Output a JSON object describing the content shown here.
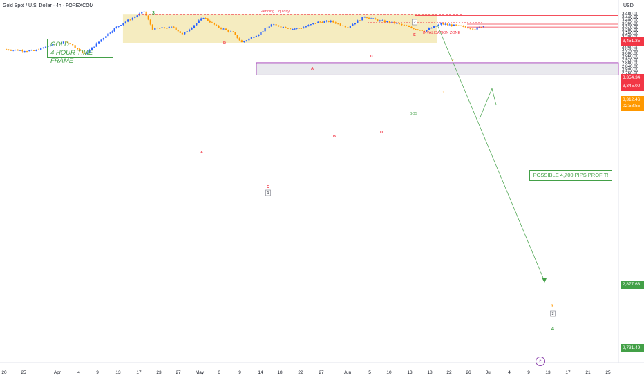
{
  "header": {
    "title": "Gold Spot / U.S. Dollar · 4h · FOREXCOM",
    "currency": "USD"
  },
  "annotations": {
    "gold_line1": "GOLD",
    "gold_line2": "4 HOUR TIME FRAME",
    "pending_liquidity": "Pending Liquidity",
    "invalidation_zone": "INVALIDATION ZONE",
    "bos": "BOS",
    "profit": "POSSIBLE 4,700 PIPS PROFIT!",
    "wave_labels": [
      "3",
      "A",
      "B",
      "C",
      "A",
      "B",
      "C",
      "D",
      "E",
      "1",
      "2",
      "3",
      "4"
    ],
    "boxed_labels": [
      "1",
      "2",
      "3"
    ]
  },
  "price_tags": {
    "t1": "3,451.35",
    "t2": "3,354.34",
    "t3": "3,345.00",
    "t4": "3,312.46",
    "t5": "02:58:55",
    "t6": "2,877.63",
    "t7": "2,731.49"
  },
  "colors": {
    "up": "#2962ff",
    "down": "#ff9800",
    "green": "#43a047",
    "red": "#f23645",
    "zone": "#f3e9b5"
  },
  "chart_data": {
    "type": "candlestick",
    "title": "Gold Spot / U.S. Dollar",
    "timeframe": "4h",
    "y_ticks": [
      2720,
      2760,
      2800,
      2840,
      2880,
      2920,
      2960,
      3000,
      3040,
      3080,
      3120,
      3160,
      3200,
      3240,
      3280,
      3320,
      3360,
      3400,
      3440,
      3480
    ],
    "x_ticks": [
      "20",
      "25",
      "Apr",
      "4",
      "9",
      "13",
      "17",
      "23",
      "27",
      "May",
      "6",
      "9",
      "14",
      "18",
      "22",
      "27",
      "Jun",
      "5",
      "10",
      "13",
      "18",
      "22",
      "26",
      "Jul",
      "4",
      "9",
      "13",
      "17",
      "21",
      "25"
    ],
    "close_path": [
      {
        "d": "2025-03-20",
        "p": 3040
      },
      {
        "d": "2025-03-27",
        "p": 3020
      },
      {
        "d": "2025-04-01",
        "p": 3110
      },
      {
        "d": "2025-04-04",
        "p": 3130
      },
      {
        "d": "2025-04-08",
        "p": 2980
      },
      {
        "d": "2025-04-13",
        "p": 3210
      },
      {
        "d": "2025-04-16",
        "p": 3330
      },
      {
        "d": "2025-04-22",
        "p": 3500
      },
      {
        "d": "2025-04-24",
        "p": 3290
      },
      {
        "d": "2025-04-29",
        "p": 3310
      },
      {
        "d": "2025-05-01",
        "p": 3220
      },
      {
        "d": "2025-05-06",
        "p": 3430
      },
      {
        "d": "2025-05-09",
        "p": 3320
      },
      {
        "d": "2025-05-13",
        "p": 3240
      },
      {
        "d": "2025-05-15",
        "p": 3125
      },
      {
        "d": "2025-05-19",
        "p": 3230
      },
      {
        "d": "2025-05-22",
        "p": 3340
      },
      {
        "d": "2025-05-27",
        "p": 3290
      },
      {
        "d": "2025-05-29",
        "p": 3300
      },
      {
        "d": "2025-06-02",
        "p": 3370
      },
      {
        "d": "2025-06-05",
        "p": 3380
      },
      {
        "d": "2025-06-09",
        "p": 3310
      },
      {
        "d": "2025-06-13",
        "p": 3440
      },
      {
        "d": "2025-06-16",
        "p": 3390
      },
      {
        "d": "2025-06-20",
        "p": 3360
      },
      {
        "d": "2025-06-24",
        "p": 3300
      },
      {
        "d": "2025-06-27",
        "p": 3265
      },
      {
        "d": "2025-07-01",
        "p": 3350
      },
      {
        "d": "2025-07-04",
        "p": 3330
      },
      {
        "d": "2025-07-09",
        "p": 3290
      },
      {
        "d": "2025-07-11",
        "p": 3325
      }
    ],
    "consolidation_zone": {
      "price_from": 3120,
      "price_to": 3470,
      "date_from": "2025-04-17",
      "date_to": "2025-06-30"
    },
    "target_zone": {
      "price_from": 2731.49,
      "price_to": 2877.63
    },
    "projection": {
      "from": {
        "d": "2025-06-30",
        "p": 3300
      },
      "to": {
        "d": "2025-07-23",
        "p": 2880
      }
    },
    "levels": {
      "pending_liquidity": 3500,
      "invalidation": 3451.35,
      "resistance_1": 3354.34,
      "resistance_2": 3345.0,
      "bos": 3300,
      "last_price": 3312.46
    }
  }
}
